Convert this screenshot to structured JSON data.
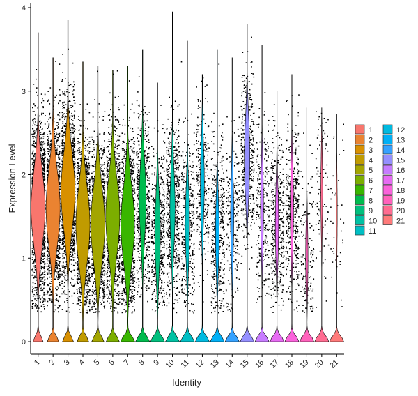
{
  "chart_data": {
    "type": "violin",
    "title": "",
    "xlabel": "Identity",
    "ylabel": "Expression Level",
    "ylim": [
      -0.15,
      4.05
    ],
    "yticks": [
      0,
      1,
      2,
      3,
      4
    ],
    "grid": false,
    "legend_position": "right",
    "categories": [
      "1",
      "2",
      "3",
      "4",
      "5",
      "6",
      "7",
      "8",
      "9",
      "10",
      "11",
      "12",
      "13",
      "14",
      "15",
      "16",
      "17",
      "18",
      "19",
      "20",
      "21"
    ],
    "colors": [
      "#F8766D",
      "#EA8331",
      "#D89000",
      "#C09B00",
      "#A3A500",
      "#7CAE00",
      "#39B600",
      "#00BB4E",
      "#00BF7D",
      "#00C1A3",
      "#00BFC4",
      "#00BAE0",
      "#00B0F6",
      "#35A2FF",
      "#9590FF",
      "#C77CFF",
      "#E76BF3",
      "#FA62DB",
      "#FF62BC",
      "#FF6C91",
      "#FF7A7A"
    ],
    "max_values": [
      3.7,
      3.4,
      3.85,
      3.35,
      3.3,
      3.25,
      3.3,
      3.5,
      3.1,
      3.95,
      3.6,
      3.2,
      3.5,
      3.4,
      3.8,
      3.55,
      3.0,
      3.2,
      2.8,
      2.8,
      2.72
    ],
    "zero_fraction": [
      0.3,
      0.33,
      0.32,
      0.33,
      0.34,
      0.36,
      0.38,
      0.55,
      0.6,
      0.62,
      0.66,
      0.68,
      0.7,
      0.72,
      0.6,
      0.74,
      0.72,
      0.72,
      0.78,
      0.82,
      0.88
    ],
    "nonzero_mean": [
      1.6,
      1.6,
      1.8,
      1.4,
      1.4,
      1.5,
      1.4,
      1.7,
      1.3,
      1.6,
      1.4,
      1.9,
      1.3,
      1.5,
      2.2,
      1.6,
      1.4,
      1.6,
      1.0,
      1.8,
      1.55
    ]
  }
}
